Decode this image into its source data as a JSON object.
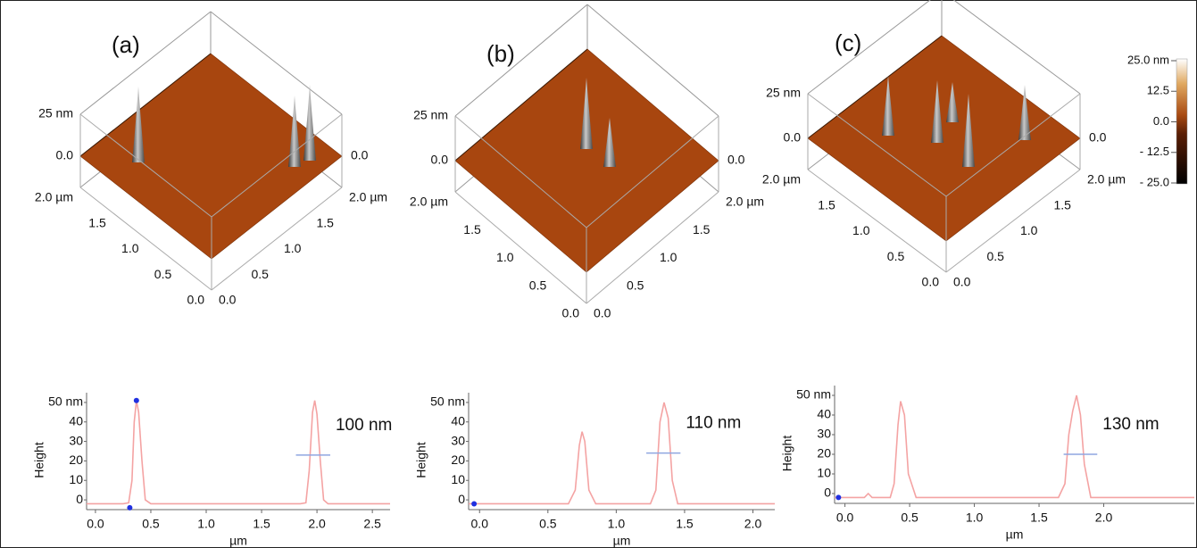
{
  "panels": [
    {
      "label": "(a)",
      "surface": {
        "z_labels": [
          "25 nm",
          "0.0"
        ],
        "z_right": "0.0",
        "left_axis": [
          "2.0 µm",
          "1.5",
          "1.0",
          "0.5",
          "0.0"
        ],
        "right_axis": [
          "0.0",
          "0.5",
          "1.0",
          "1.5",
          "2.0 µm"
        ]
      }
    },
    {
      "label": "(b)",
      "surface": {
        "z_labels": [
          "25 nm",
          "0.0"
        ],
        "z_right": "0.0",
        "left_axis": [
          "2.0 µm",
          "1.5",
          "1.0",
          "0.5",
          "0.0"
        ],
        "right_axis": [
          "0.0",
          "0.5",
          "1.0",
          "1.5",
          "2.0 µm"
        ]
      }
    },
    {
      "label": "(c)",
      "surface": {
        "z_labels": [
          "25 nm",
          "0.0"
        ],
        "z_right": "0.0",
        "left_axis": [
          "2.0 µm",
          "1.5",
          "1.0",
          "0.5",
          "0.0"
        ],
        "right_axis": [
          "0.0",
          "0.5",
          "1.0",
          "1.5",
          "2.0 µm"
        ]
      }
    }
  ],
  "colorbar": {
    "lim": [
      -25,
      25
    ],
    "ticks": [
      {
        "value": 25,
        "label": "25.0 nm"
      },
      12.5,
      {
        "value": 0,
        "label": "0.0"
      },
      {
        "value": -12.5,
        "label": "- 12.5"
      },
      {
        "value": -25,
        "label": "- 25.0"
      }
    ]
  },
  "chart_data": [
    {
      "type": "line",
      "xlabel": "µm",
      "ylabel": "Height",
      "annotation": "100 nm",
      "color": "#f4a3a3",
      "xlim": [
        -0.08,
        2.66
      ],
      "ylim": [
        -5,
        55
      ],
      "xticks": [
        {
          "value": 0,
          "label": "0.0"
        },
        0.5,
        {
          "value": 1,
          "label": "1.0"
        },
        1.5,
        {
          "value": 2,
          "label": "2.0"
        },
        2.5
      ],
      "yticks": [
        {
          "value": 50,
          "label": "50 nm"
        },
        40,
        30,
        20,
        10,
        0
      ],
      "x": [
        -0.08,
        0.25,
        0.3,
        0.33,
        0.35,
        0.37,
        0.39,
        0.42,
        0.45,
        0.5,
        1.85,
        1.9,
        1.93,
        1.96,
        1.98,
        2.0,
        2.03,
        2.06,
        2.1,
        2.66
      ],
      "values": [
        -2,
        -2,
        -1.5,
        10,
        40,
        51,
        45,
        20,
        0,
        -2,
        -2,
        -1.5,
        15,
        45,
        51,
        44,
        20,
        0,
        -2,
        -2
      ],
      "width_marker": {
        "x": [
          1.81,
          2.12
        ],
        "y": 23,
        "color": "#8fa6e0"
      },
      "markers": {
        "x": [
          0.37,
          0.31
        ],
        "y": [
          51,
          -4
        ],
        "color": "#2030e0"
      }
    },
    {
      "type": "line",
      "xlabel": "µm",
      "ylabel": "Height",
      "annotation": "110 nm",
      "color": "#f4a3a3",
      "xlim": [
        -0.08,
        2.16
      ],
      "ylim": [
        -5,
        55
      ],
      "xticks": [
        {
          "value": 0,
          "label": "0.0"
        },
        0.5,
        {
          "value": 1,
          "label": "1.0"
        },
        1.5,
        {
          "value": 2,
          "label": "2.0"
        }
      ],
      "yticks": [
        {
          "value": 50,
          "label": "50 nm"
        },
        40,
        30,
        20,
        10,
        0
      ],
      "x": [
        -0.08,
        0.65,
        0.7,
        0.73,
        0.75,
        0.77,
        0.8,
        0.85,
        1.25,
        1.29,
        1.32,
        1.35,
        1.38,
        1.41,
        1.45,
        2.16
      ],
      "values": [
        -2,
        -2,
        5,
        28,
        35,
        30,
        5,
        -2,
        -2,
        5,
        40,
        50,
        42,
        10,
        -2,
        -2
      ],
      "width_marker": {
        "x": [
          1.22,
          1.47
        ],
        "y": 24,
        "color": "#8fa6e0"
      },
      "markers": {
        "x": [
          -0.04
        ],
        "y": [
          -2
        ],
        "color": "#2030e0"
      }
    },
    {
      "type": "line",
      "xlabel": "µm",
      "ylabel": "Height",
      "annotation": "130 nm",
      "color": "#f4a3a3",
      "xlim": [
        -0.08,
        2.7
      ],
      "ylim": [
        -5,
        55
      ],
      "xticks": [
        {
          "value": 0,
          "label": "0.0"
        },
        0.5,
        {
          "value": 1,
          "label": "1.0"
        },
        1.5,
        {
          "value": 2,
          "label": "2.0"
        }
      ],
      "yticks": [
        {
          "value": 50,
          "label": "50 nm"
        },
        40,
        30,
        20,
        10,
        0
      ],
      "x": [
        -0.08,
        0.15,
        0.18,
        0.21,
        0.35,
        0.38,
        0.41,
        0.43,
        0.46,
        0.49,
        0.55,
        1.65,
        1.7,
        1.73,
        1.76,
        1.79,
        1.82,
        1.85,
        1.9,
        2.7
      ],
      "values": [
        -2,
        -2,
        0,
        -2,
        -2,
        5,
        35,
        47,
        40,
        10,
        -2,
        -2,
        5,
        30,
        42,
        50,
        40,
        15,
        -2,
        -2
      ],
      "width_marker": {
        "x": [
          1.69,
          1.95
        ],
        "y": 20,
        "color": "#8fa6e0"
      },
      "markers": {
        "x": [
          -0.05
        ],
        "y": [
          -2
        ],
        "color": "#2030e0"
      }
    }
  ]
}
